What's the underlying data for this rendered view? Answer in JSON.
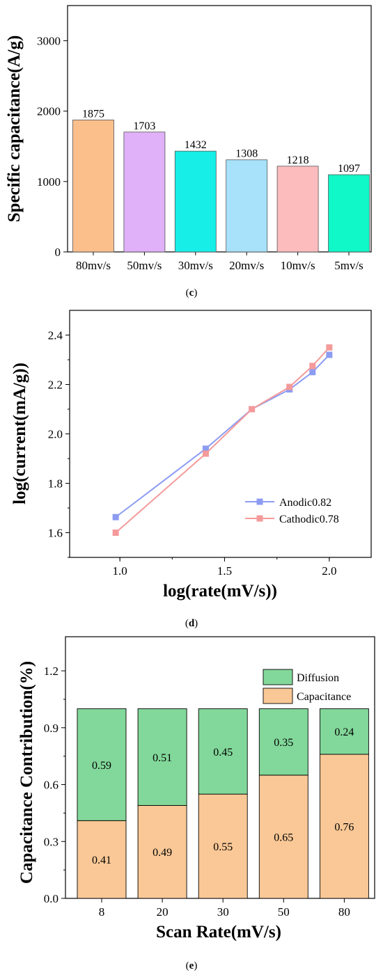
{
  "chart_data": [
    {
      "type": "bar",
      "caption_prefix": "(",
      "caption_letter": "c",
      "caption_suffix": ")",
      "ylabel": "Specific capacitance(A/g)",
      "xlabel": "",
      "ylim": [
        0,
        3500
      ],
      "yticks": [
        0,
        1000,
        2000,
        3000
      ],
      "categories": [
        "80mv/s",
        "50mv/s",
        "30mv/s",
        "20mv/s",
        "10mv/s",
        "5mv/s"
      ],
      "values": [
        1875,
        1703,
        1432,
        1308,
        1218,
        1097
      ],
      "data_labels": [
        "1875",
        "1703",
        "1432",
        "1308",
        "1218",
        "1097"
      ],
      "colors": [
        "#fbbf8c",
        "#e0b0f9",
        "#17eee8",
        "#a7e2fa",
        "#fcbcbe",
        "#10f7c8"
      ]
    },
    {
      "type": "line",
      "caption_prefix": "(",
      "caption_letter": "d",
      "caption_suffix": ")",
      "ylabel": "log(current(mA/g))",
      "xlabel": "log(rate(mV/s))",
      "xlim": [
        0.76,
        2.2
      ],
      "ylim": [
        1.5,
        2.5
      ],
      "xticks": [
        "1.0",
        "1.5",
        "2.0"
      ],
      "yticks": [
        "1.6",
        "1.8",
        "2.0",
        "2.2",
        "2.4"
      ],
      "legend_position": "bottom-right",
      "series": [
        {
          "name": "Anodic0.82",
          "color": "#8c9cf2",
          "x": [
            0.98,
            1.41,
            1.63,
            1.81,
            1.92,
            2.0
          ],
          "y": [
            1.663,
            1.94,
            2.1,
            2.18,
            2.25,
            2.32
          ]
        },
        {
          "name": "Cathodic0.78",
          "color": "#f49a9a",
          "x": [
            0.98,
            1.41,
            1.63,
            1.81,
            1.92,
            2.0
          ],
          "y": [
            1.6,
            1.92,
            2.1,
            2.19,
            2.275,
            2.35
          ]
        }
      ]
    },
    {
      "type": "bar",
      "stacked": true,
      "caption_prefix": "(",
      "caption_letter": "e",
      "caption_suffix": ")",
      "ylabel": "Capacitance Contribution(%)",
      "xlabel": "Scan Rate(mV/s)",
      "ylim": [
        0,
        1.38
      ],
      "yticks": [
        "0.0",
        "0.3",
        "0.6",
        "0.9",
        "1.2"
      ],
      "categories": [
        "8",
        "20",
        "30",
        "50",
        "80"
      ],
      "legend_position": "top-right",
      "series": [
        {
          "name": "Capacitance",
          "color": "#f9c896",
          "values": [
            0.41,
            0.49,
            0.55,
            0.65,
            0.76
          ],
          "labels": [
            "0.41",
            "0.49",
            "0.55",
            "0.65",
            "0.76"
          ]
        },
        {
          "name": "Diffusion",
          "color": "#82d89a",
          "values": [
            0.59,
            0.51,
            0.45,
            0.35,
            0.24
          ],
          "labels": [
            "0.59",
            "0.51",
            "0.45",
            "0.35",
            "0.24"
          ]
        }
      ]
    }
  ]
}
